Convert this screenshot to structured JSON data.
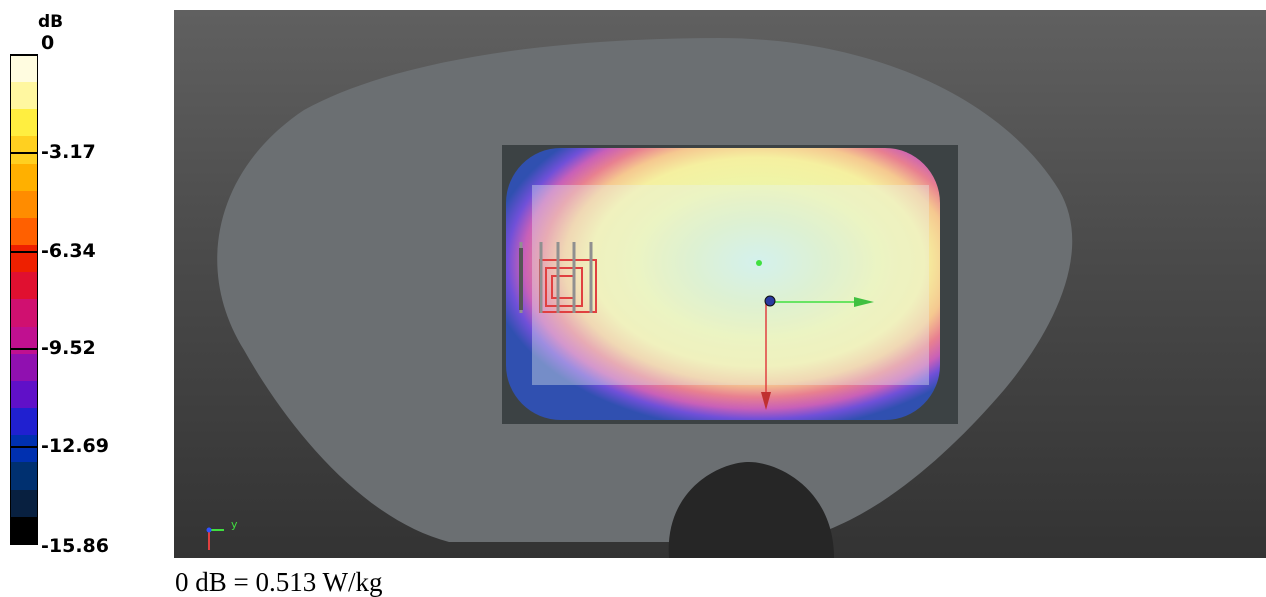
{
  "legend": {
    "unit": "dB",
    "ticks": [
      "0",
      "-3.17",
      "-6.34",
      "-9.52",
      "-12.69",
      "-15.86"
    ],
    "bands": [
      "#fffce0",
      "#fff7a0",
      "#ffee40",
      "#ffd020",
      "#ffb000",
      "#ff8c00",
      "#ff6000",
      "#ee2000",
      "#e01030",
      "#d01070",
      "#c01090",
      "#9010b0",
      "#6010c8",
      "#2020d0",
      "#0030b0",
      "#003070",
      "#082040",
      "#000000"
    ]
  },
  "viewport": {
    "axis_triad_label": "y"
  },
  "caption": "0 dB = 0.513 W/kg"
}
